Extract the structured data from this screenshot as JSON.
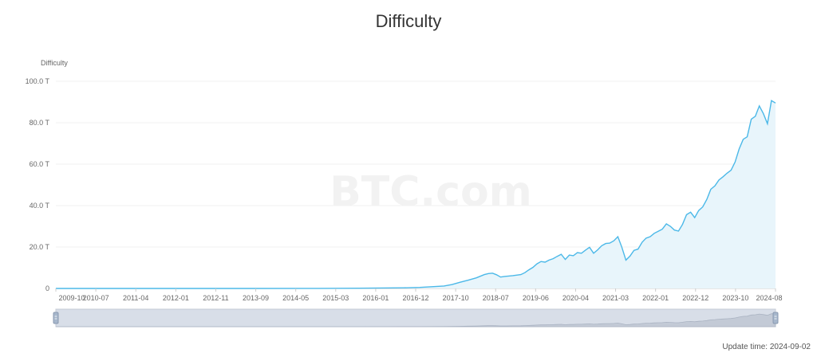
{
  "chart_data": {
    "type": "area",
    "title": "Difficulty",
    "ylabel": "Difficulty",
    "xlabel": "",
    "ylim": [
      0,
      100
    ],
    "yunit": "T",
    "y_ticks": [
      {
        "value": 0,
        "label": "0"
      },
      {
        "value": 20,
        "label": "20.0 T"
      },
      {
        "value": 40,
        "label": "40.0 T"
      },
      {
        "value": 60,
        "label": "60.0 T"
      },
      {
        "value": 80,
        "label": "80.0 T"
      },
      {
        "value": 100,
        "label": "100.0 T"
      }
    ],
    "x_range": [
      "2009-10",
      "2024-08"
    ],
    "x_ticks": [
      "2009-10",
      "2010-07",
      "2011-04",
      "2012-01",
      "2012-11",
      "2013-09",
      "2014-05",
      "2015-03",
      "2016-01",
      "2016-12",
      "2017-10",
      "2018-07",
      "2019-06",
      "2020-04",
      "2021-03",
      "2022-01",
      "2022-12",
      "2023-10",
      "2024-08"
    ],
    "grid": true,
    "series": [
      {
        "name": "Difficulty",
        "color": "#4bb8e8",
        "fill": "#e8f5fb",
        "points": [
          [
            "2009-10",
            0
          ],
          [
            "2013-09",
            0
          ],
          [
            "2015-03",
            0.05
          ],
          [
            "2016-01",
            0.1
          ],
          [
            "2016-12",
            0.3
          ],
          [
            "2017-04",
            0.5
          ],
          [
            "2017-10",
            1.2
          ],
          [
            "2017-12",
            1.9
          ],
          [
            "2018-02",
            3.0
          ],
          [
            "2018-04",
            4.0
          ],
          [
            "2018-06",
            5.1
          ],
          [
            "2018-08",
            6.7
          ],
          [
            "2018-09",
            7.2
          ],
          [
            "2018-10",
            7.4
          ],
          [
            "2018-11",
            6.6
          ],
          [
            "2018-12",
            5.5
          ],
          [
            "2019-01",
            5.8
          ],
          [
            "2019-03",
            6.2
          ],
          [
            "2019-05",
            6.7
          ],
          [
            "2019-06",
            7.6
          ],
          [
            "2019-07",
            9.0
          ],
          [
            "2019-08",
            10.2
          ],
          [
            "2019-09",
            11.9
          ],
          [
            "2019-10",
            13.0
          ],
          [
            "2019-11",
            12.7
          ],
          [
            "2019-12",
            13.7
          ],
          [
            "2020-01",
            14.4
          ],
          [
            "2020-02",
            15.5
          ],
          [
            "2020-03",
            16.5
          ],
          [
            "2020-04",
            14.0
          ],
          [
            "2020-05",
            16.1
          ],
          [
            "2020-06",
            15.8
          ],
          [
            "2020-07",
            17.3
          ],
          [
            "2020-08",
            17.0
          ],
          [
            "2020-09",
            18.5
          ],
          [
            "2020-10",
            19.9
          ],
          [
            "2020-11",
            17.0
          ],
          [
            "2020-12",
            18.6
          ],
          [
            "2021-01",
            20.6
          ],
          [
            "2021-02",
            21.7
          ],
          [
            "2021-03",
            21.9
          ],
          [
            "2021-04",
            23.0
          ],
          [
            "2021-05",
            25.0
          ],
          [
            "2021-06",
            19.9
          ],
          [
            "2021-07",
            13.7
          ],
          [
            "2021-08",
            15.6
          ],
          [
            "2021-09",
            18.4
          ],
          [
            "2021-10",
            19.0
          ],
          [
            "2021-11",
            22.3
          ],
          [
            "2021-12",
            24.3
          ],
          [
            "2022-01",
            25.0
          ],
          [
            "2022-02",
            26.6
          ],
          [
            "2022-03",
            27.6
          ],
          [
            "2022-04",
            28.6
          ],
          [
            "2022-05",
            31.2
          ],
          [
            "2022-06",
            30.0
          ],
          [
            "2022-07",
            28.2
          ],
          [
            "2022-08",
            27.7
          ],
          [
            "2022-09",
            30.9
          ],
          [
            "2022-10",
            35.6
          ],
          [
            "2022-11",
            36.8
          ],
          [
            "2022-12",
            34.2
          ],
          [
            "2023-01",
            37.6
          ],
          [
            "2023-02",
            39.4
          ],
          [
            "2023-03",
            43.0
          ],
          [
            "2023-04",
            47.9
          ],
          [
            "2023-05",
            49.5
          ],
          [
            "2023-06",
            52.4
          ],
          [
            "2023-07",
            53.9
          ],
          [
            "2023-08",
            55.6
          ],
          [
            "2023-09",
            57.1
          ],
          [
            "2023-10",
            61.0
          ],
          [
            "2023-11",
            67.3
          ],
          [
            "2023-12",
            72.0
          ],
          [
            "2024-01",
            73.2
          ],
          [
            "2024-02",
            81.7
          ],
          [
            "2024-03",
            83.1
          ],
          [
            "2024-04",
            88.1
          ],
          [
            "2024-05",
            84.4
          ],
          [
            "2024-06",
            79.5
          ],
          [
            "2024-07",
            90.7
          ],
          [
            "2024-08",
            89.5
          ]
        ]
      }
    ]
  },
  "watermark": "BTC.com",
  "footer": {
    "update_label": "Update time:",
    "update_value": "2024-09-02"
  }
}
